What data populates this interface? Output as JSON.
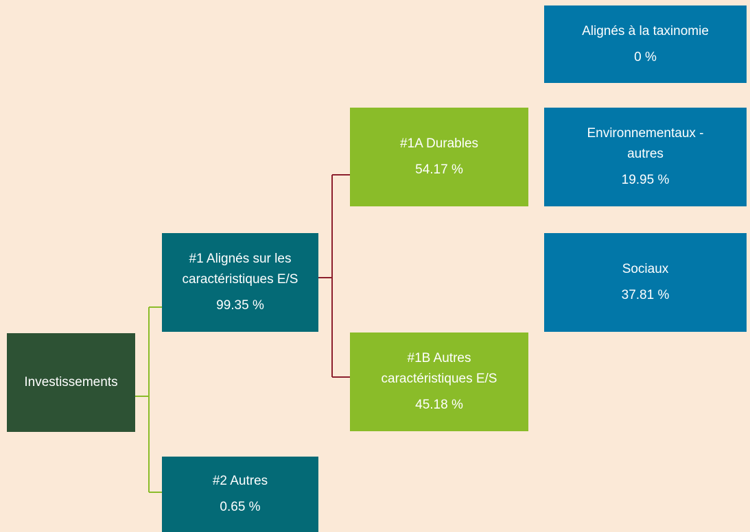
{
  "nodes": [
    {
      "label": [
        "Investissements"
      ]
    },
    {
      "label": [
        "#1 Alignés sur les",
        "caractéristiques E/S"
      ],
      "value": "99.35 %"
    },
    {
      "label": [
        "#2 Autres"
      ],
      "value": "0.65 %"
    },
    {
      "label": [
        "#1A Durables"
      ],
      "value": "54.17 %"
    },
    {
      "label": [
        "#1B Autres",
        "caractéristiques E/S"
      ],
      "value": "45.18 %"
    },
    {
      "label": [
        "Alignés à la taxinomie"
      ],
      "value": "0 %"
    },
    {
      "label": [
        "Environnementaux -",
        "autres"
      ],
      "value": "19.95 %"
    },
    {
      "label": [
        "Sociaux"
      ],
      "value": "37.81 %"
    }
  ]
}
